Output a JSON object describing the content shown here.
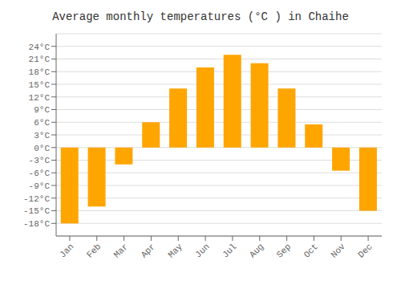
{
  "chart_data": {
    "type": "bar",
    "title": "Average monthly temperatures (°C ) in Chaihe",
    "categories": [
      "Jan",
      "Feb",
      "Mar",
      "Apr",
      "May",
      "Jun",
      "Jul",
      "Aug",
      "Sep",
      "Oct",
      "Nov",
      "Dec"
    ],
    "values": [
      -18,
      -14,
      -4,
      6,
      14,
      19,
      22,
      20,
      14,
      5.5,
      -5.5,
      -15
    ],
    "color": "#FFA500",
    "ylim": [
      -21,
      27
    ],
    "yticks": [
      {
        "value": -18,
        "label": "-18°C"
      },
      {
        "value": -15,
        "label": "-15°C"
      },
      {
        "value": -12,
        "label": "-12°C"
      },
      {
        "value": -9,
        "label": "-9°C"
      },
      {
        "value": -6,
        "label": "-6°C"
      },
      {
        "value": -3,
        "label": "-3°C"
      },
      {
        "value": 0,
        "label": "0°C"
      },
      {
        "value": 3,
        "label": "3°C"
      },
      {
        "value": 6,
        "label": "6°C"
      },
      {
        "value": 9,
        "label": "9°C"
      },
      {
        "value": 12,
        "label": "12°C"
      },
      {
        "value": 15,
        "label": "15°C"
      },
      {
        "value": 18,
        "label": "18°C"
      },
      {
        "value": 21,
        "label": "21°C"
      },
      {
        "value": 24,
        "label": "24°C"
      }
    ],
    "grid": true
  }
}
